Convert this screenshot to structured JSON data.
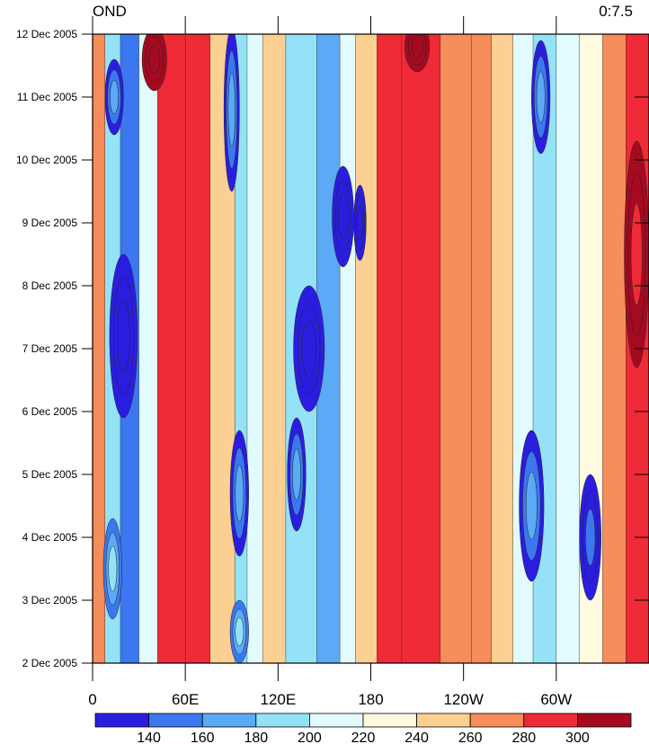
{
  "chart_data": {
    "type": "heatmap",
    "title_left": "OND",
    "title_right": "0:7.5",
    "x_ticks": [
      "0",
      "60E",
      "120E",
      "180",
      "120W",
      "60W"
    ],
    "x_tick_lon": [
      0,
      60,
      120,
      180,
      240,
      300
    ],
    "x_range_lon": [
      0,
      360
    ],
    "y_ticks": [
      "2 Dec 2005",
      "3 Dec 2005",
      "4 Dec 2005",
      "5 Dec 2005",
      "6 Dec 2005",
      "7 Dec 2005",
      "8 Dec 2005",
      "9 Dec 2005",
      "10 Dec 2005",
      "11 Dec 2005",
      "12 Dec 2005"
    ],
    "y_range_day": [
      2,
      12
    ],
    "colorbar": {
      "labels": [
        "140",
        "160",
        "180",
        "200",
        "220",
        "240",
        "260",
        "280",
        "300"
      ],
      "colors": [
        "#2b1de0",
        "#3b78f0",
        "#5aaaf5",
        "#94e2f8",
        "#e2fbff",
        "#fffae0",
        "#fccf92",
        "#f68d5a",
        "#ee2b36",
        "#a50a20"
      ]
    },
    "background_levels_by_lon": [
      {
        "lon": 0,
        "level": 7
      },
      {
        "lon": 8,
        "level": 3
      },
      {
        "lon": 18,
        "level": 1
      },
      {
        "lon": 30,
        "level": 4
      },
      {
        "lon": 42,
        "level": 8
      },
      {
        "lon": 60,
        "level": 8
      },
      {
        "lon": 76,
        "level": 6
      },
      {
        "lon": 92,
        "level": 3
      },
      {
        "lon": 100,
        "level": 4
      },
      {
        "lon": 110,
        "level": 6
      },
      {
        "lon": 125,
        "level": 3
      },
      {
        "lon": 145,
        "level": 2
      },
      {
        "lon": 160,
        "level": 4
      },
      {
        "lon": 170,
        "level": 6
      },
      {
        "lon": 184,
        "level": 8
      },
      {
        "lon": 200,
        "level": 8
      },
      {
        "lon": 225,
        "level": 7
      },
      {
        "lon": 245,
        "level": 7
      },
      {
        "lon": 258,
        "level": 6
      },
      {
        "lon": 272,
        "level": 4
      },
      {
        "lon": 285,
        "level": 3
      },
      {
        "lon": 300,
        "level": 4
      },
      {
        "lon": 315,
        "level": 5
      },
      {
        "lon": 330,
        "level": 7
      },
      {
        "lon": 345,
        "level": 8
      },
      {
        "lon": 360,
        "level": 8
      }
    ],
    "features": [
      {
        "lon": 20,
        "day": 7.2,
        "rx": 9,
        "ry": 1.3,
        "level": 0
      },
      {
        "lon": 14,
        "day": 11.0,
        "rx": 6,
        "ry": 0.6,
        "level": 2
      },
      {
        "lon": 13,
        "day": 3.5,
        "rx": 6,
        "ry": 0.8,
        "level": 3
      },
      {
        "lon": 40,
        "day": 11.6,
        "rx": 8,
        "ry": 0.5,
        "level": 9
      },
      {
        "lon": 90,
        "day": 10.8,
        "rx": 5,
        "ry": 1.3,
        "level": 2
      },
      {
        "lon": 95,
        "day": 4.7,
        "rx": 6,
        "ry": 1.0,
        "level": 2
      },
      {
        "lon": 95,
        "day": 2.5,
        "rx": 6,
        "ry": 0.5,
        "level": 3
      },
      {
        "lon": 140,
        "day": 7.0,
        "rx": 10,
        "ry": 1.0,
        "level": 0
      },
      {
        "lon": 132,
        "day": 5.0,
        "rx": 6,
        "ry": 0.9,
        "level": 2
      },
      {
        "lon": 162,
        "day": 9.1,
        "rx": 7,
        "ry": 0.8,
        "level": 0
      },
      {
        "lon": 173,
        "day": 9.0,
        "rx": 4,
        "ry": 0.6,
        "level": 0
      },
      {
        "lon": 210,
        "day": 11.8,
        "rx": 8,
        "ry": 0.4,
        "level": 9
      },
      {
        "lon": 290,
        "day": 11.0,
        "rx": 6,
        "ry": 0.9,
        "level": 2
      },
      {
        "lon": 284,
        "day": 4.5,
        "rx": 8,
        "ry": 1.2,
        "level": 2
      },
      {
        "lon": 322,
        "day": 4.0,
        "rx": 7,
        "ry": 1.0,
        "level": 1
      },
      {
        "lon": 352,
        "day": 8.5,
        "rx": 8,
        "ry": 1.8,
        "level": 8
      }
    ]
  }
}
